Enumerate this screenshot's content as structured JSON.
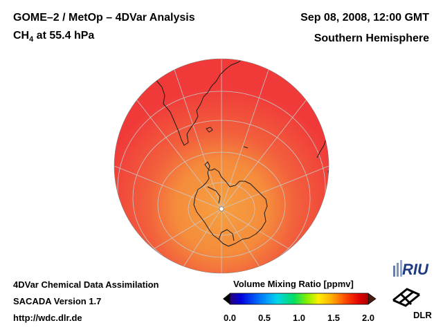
{
  "header": {
    "title": "GOME–2 / MetOp – 4DVar Analysis",
    "species": "CH",
    "species_sub": "4",
    "level": " at 55.4 hPa",
    "datetime": "Sep 08, 2008, 12:00 GMT",
    "region": "Southern Hemisphere"
  },
  "footer": {
    "line1": "4DVar Chemical Data Assimilation",
    "line2": "SACADA Version 1.7",
    "line3": "http://wdc.dlr.de"
  },
  "colorbar": {
    "title": "Volume Mixing Ratio [ppmv]",
    "min": 0.0,
    "max": 2.0,
    "ticks": [
      "0.0",
      "0.5",
      "1.0",
      "1.5",
      "2.0"
    ],
    "tick_values": [
      0.0,
      0.5,
      1.0,
      1.5,
      2.0
    ]
  },
  "logos": {
    "riu": "RIU",
    "dlr": "DLR"
  },
  "colors": {
    "field_main": "#f03a3a",
    "field_polar": "#f5913e",
    "coast": "#111111",
    "grid": "#c8c8c8"
  }
}
